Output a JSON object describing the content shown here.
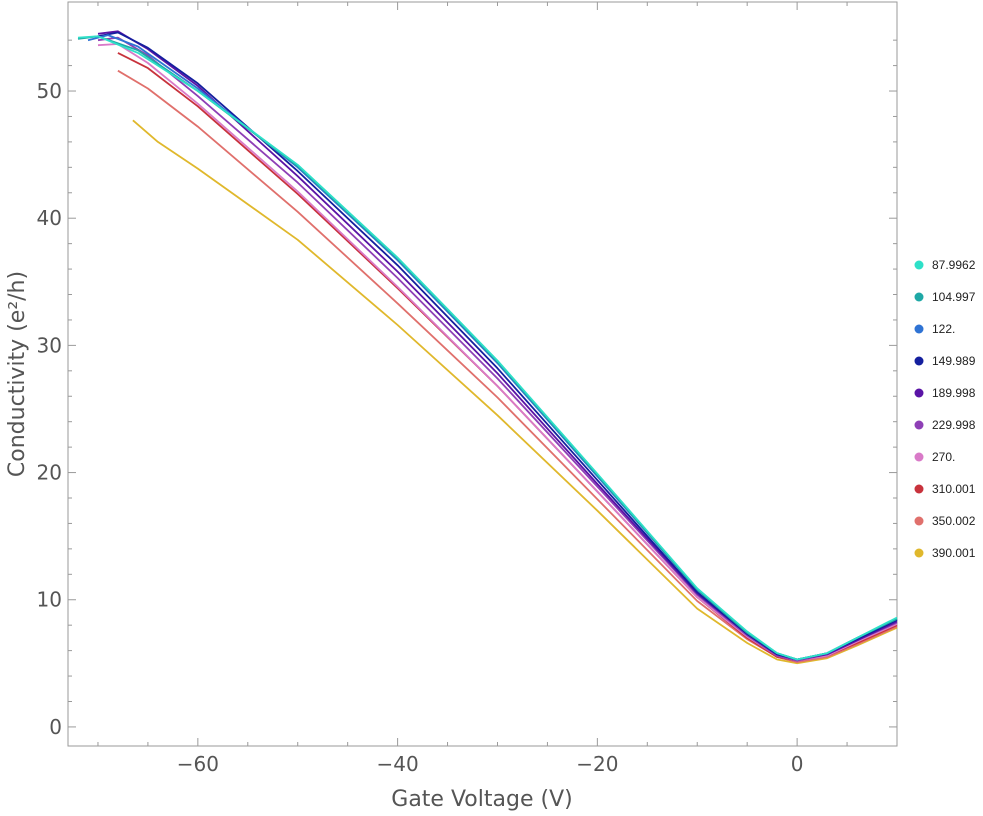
{
  "chart_data": {
    "type": "line",
    "title": "",
    "xlabel": "Gate Voltage (V)",
    "ylabel": "Conductivity (e²/h)",
    "xlim": [
      -73,
      10
    ],
    "ylim": [
      -1.5,
      57
    ],
    "x_ticks": [
      -60,
      -40,
      -20,
      0
    ],
    "x_tick_labels": [
      "−60",
      "−40",
      "−20",
      "0"
    ],
    "y_ticks": [
      0,
      10,
      20,
      30,
      40,
      50
    ],
    "y_tick_labels": [
      "0",
      "10",
      "20",
      "30",
      "40",
      "50"
    ],
    "grid": false,
    "legend_position": "right",
    "series": [
      {
        "name": "87.9962",
        "color": "#2ee0c8",
        "x": [
          -72,
          -70,
          -66,
          -60,
          -50,
          -40,
          -30,
          -20,
          -10,
          -5,
          -2,
          0,
          3,
          6,
          10
        ],
        "y": [
          54.2,
          54.3,
          53.0,
          50.0,
          44.2,
          36.9,
          28.8,
          19.9,
          10.9,
          7.5,
          5.8,
          5.3,
          5.8,
          7.0,
          8.6
        ]
      },
      {
        "name": "104.997",
        "color": "#1fa8a6",
        "x": [
          -72,
          -70,
          -66,
          -60,
          -50,
          -40,
          -30,
          -20,
          -10,
          -5,
          -2,
          0,
          3,
          6,
          10
        ],
        "y": [
          54.1,
          54.3,
          53.2,
          50.0,
          44.1,
          36.8,
          28.7,
          19.8,
          10.8,
          7.4,
          5.8,
          5.3,
          5.8,
          7.0,
          8.5
        ]
      },
      {
        "name": "122.",
        "color": "#2f73d4",
        "x": [
          -71,
          -69,
          -66,
          -60,
          -50,
          -40,
          -30,
          -20,
          -10,
          -5,
          -2,
          0,
          3,
          6,
          10
        ],
        "y": [
          54.0,
          54.4,
          53.5,
          50.2,
          44.0,
          36.7,
          28.6,
          19.7,
          10.8,
          7.4,
          5.8,
          5.3,
          5.8,
          7.0,
          8.5
        ]
      },
      {
        "name": "149.989",
        "color": "#141f9e",
        "x": [
          -70,
          -68,
          -65,
          -60,
          -50,
          -40,
          -30,
          -20,
          -10,
          -5,
          -2,
          0,
          3,
          6,
          10
        ],
        "y": [
          54.3,
          54.6,
          53.4,
          50.6,
          43.7,
          36.3,
          28.2,
          19.4,
          10.6,
          7.3,
          5.7,
          5.3,
          5.8,
          6.9,
          8.4
        ]
      },
      {
        "name": "189.998",
        "color": "#5a14a6",
        "x": [
          -70,
          -68,
          -65,
          -60,
          -50,
          -40,
          -30,
          -20,
          -10,
          -5,
          -2,
          0,
          3,
          6,
          10
        ],
        "y": [
          54.5,
          54.7,
          53.3,
          50.4,
          43.3,
          35.8,
          27.8,
          19.1,
          10.5,
          7.3,
          5.7,
          5.3,
          5.7,
          6.8,
          8.3
        ]
      },
      {
        "name": "229.998",
        "color": "#8e3fb6",
        "x": [
          -70,
          -68,
          -65,
          -60,
          -50,
          -40,
          -30,
          -20,
          -10,
          -5,
          -2,
          0,
          3,
          6,
          10
        ],
        "y": [
          54.0,
          54.2,
          52.8,
          49.6,
          42.8,
          35.3,
          27.4,
          18.9,
          10.4,
          7.2,
          5.6,
          5.2,
          5.7,
          6.8,
          8.2
        ]
      },
      {
        "name": "270.",
        "color": "#d97ac8",
        "x": [
          -70,
          -68,
          -65,
          -60,
          -50,
          -40,
          -30,
          -20,
          -10,
          -5,
          -2,
          0,
          3,
          6,
          10
        ],
        "y": [
          53.6,
          53.7,
          52.2,
          49.0,
          42.1,
          34.6,
          26.8,
          18.5,
          10.2,
          7.1,
          5.6,
          5.2,
          5.6,
          6.7,
          8.1
        ]
      },
      {
        "name": "310.001",
        "color": "#c8323c",
        "x": [
          -68,
          -65,
          -60,
          -50,
          -40,
          -30,
          -20,
          -10,
          -5,
          -2,
          0,
          3,
          6,
          10
        ],
        "y": [
          53.0,
          51.8,
          48.8,
          41.9,
          34.5,
          26.8,
          18.5,
          10.2,
          7.0,
          5.5,
          5.2,
          5.6,
          6.6,
          8.0
        ]
      },
      {
        "name": "350.002",
        "color": "#e0706c",
        "x": [
          -68,
          -65,
          -60,
          -50,
          -40,
          -30,
          -20,
          -10,
          -5,
          -2,
          0,
          3,
          6,
          10
        ],
        "y": [
          51.6,
          50.2,
          47.2,
          40.5,
          33.3,
          25.9,
          17.9,
          9.9,
          6.9,
          5.5,
          5.1,
          5.5,
          6.5,
          7.9
        ]
      },
      {
        "name": "390.001",
        "color": "#e0b82c",
        "x": [
          -66.5,
          -64,
          -60,
          -50,
          -40,
          -30,
          -20,
          -10,
          -5,
          -2,
          0,
          3,
          6,
          10
        ],
        "y": [
          47.7,
          46.0,
          43.9,
          38.3,
          31.6,
          24.5,
          17.0,
          9.3,
          6.6,
          5.3,
          5.0,
          5.4,
          6.4,
          7.8
        ]
      }
    ]
  }
}
